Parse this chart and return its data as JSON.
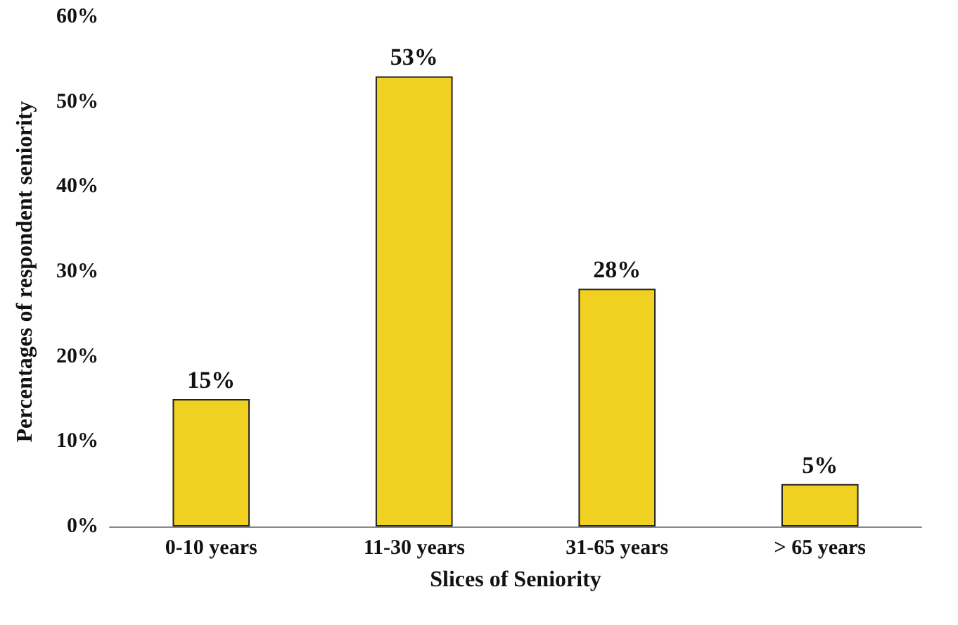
{
  "chart_data": {
    "type": "bar",
    "xlabel": "Slices of Seniority",
    "ylabel": "Percentages of respondent seniority",
    "categories": [
      "0-10 years",
      "11-30 years",
      "31-65 years",
      "> 65 years"
    ],
    "values": [
      15,
      53,
      28,
      5
    ],
    "color": "#f0d020",
    "value_labels": [
      "15%",
      "53%",
      "28%",
      "5%"
    ],
    "ylim": [
      0,
      60
    ],
    "yticks": [
      {
        "value": 0,
        "label": "0%"
      },
      {
        "value": 10,
        "label": "10%"
      },
      {
        "value": 20,
        "label": "20%"
      },
      {
        "value": 30,
        "label": "30%"
      },
      {
        "value": 40,
        "label": "40%"
      },
      {
        "value": 50,
        "label": "50%"
      },
      {
        "value": 60,
        "label": "60%"
      }
    ],
    "grid": false
  }
}
